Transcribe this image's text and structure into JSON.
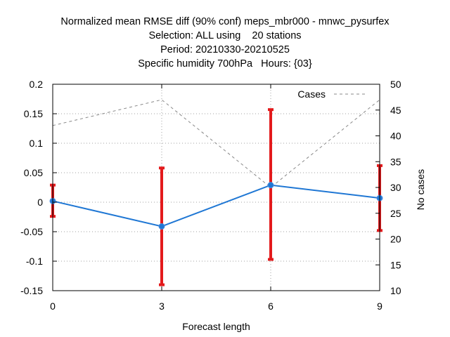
{
  "chart_data": {
    "type": "line",
    "title_lines": [
      "Normalized mean RMSE diff (90% conf) meps_mbr000 - mnwc_pysurfex",
      "Selection: ALL using    20 stations",
      "Period: 20210330-20210525",
      "Specific humidity 700hPa   Hours: {03}"
    ],
    "xlabel": "Forecast length",
    "ylabel": "",
    "y2label": "No cases",
    "x_ticks": [
      "0",
      "3",
      "6",
      "9"
    ],
    "y_ticks": [
      "0.2",
      "0.15",
      "0.1",
      "0.05",
      "0",
      "-0.05",
      "-0.1",
      "-0.15"
    ],
    "y2_ticks": [
      "50",
      "45",
      "40",
      "35",
      "30",
      "25",
      "20",
      "15",
      "10"
    ],
    "xlim": [
      0,
      9
    ],
    "ylim": [
      -0.15,
      0.2
    ],
    "y2lim": [
      10,
      50
    ],
    "grid": true,
    "legend_position": "top-right",
    "series": [
      {
        "axis": "left",
        "color": "#1f77d4",
        "x": [
          0,
          3,
          6,
          9
        ],
        "y": [
          0.002,
          -0.041,
          0.029,
          0.007
        ],
        "err_low": [
          -0.024,
          -0.14,
          -0.097,
          -0.048
        ],
        "err_high": [
          0.029,
          0.058,
          0.157,
          0.062
        ],
        "err_color": "#e31a1c"
      },
      {
        "name": "Cases",
        "axis": "right",
        "color": "#888888",
        "dashed": true,
        "x": [
          0,
          3,
          6,
          9
        ],
        "y": [
          42,
          47,
          30,
          47
        ]
      }
    ]
  }
}
